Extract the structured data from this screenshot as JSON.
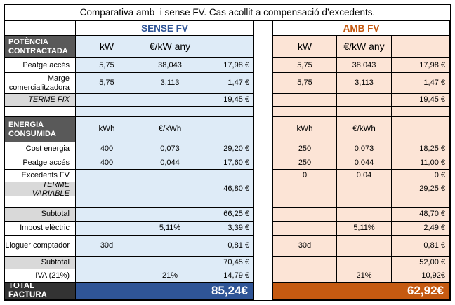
{
  "title": "Comparativa amb  i sense FV. Cas acollit a compensació d’excedents.",
  "section_headers": {
    "sense": "SENSE FV",
    "amb": "AMB FV"
  },
  "colors": {
    "sense_accent": "#2F5597",
    "amb_accent": "#C55A11",
    "sense_fill": "#DEEBF7",
    "amb_fill": "#FCE4D6",
    "section_header_fill": "#595959",
    "summary_fill": "#D9D9D9",
    "total_label_fill": "#333333"
  },
  "rows": [
    {
      "type": "section",
      "label": "POTÈNCIA CONTRACTADA",
      "sense": [
        "kW",
        "€/kW any",
        ""
      ],
      "amb": [
        "kW",
        "€/kW any",
        ""
      ]
    },
    {
      "type": "data",
      "label": "Peatge accés",
      "sense": [
        "5,75",
        "38,043",
        "17,98 €"
      ],
      "amb": [
        "5,75",
        "38,043",
        "17,98 €"
      ]
    },
    {
      "type": "data",
      "label": "Marge comercialitzadora",
      "sense": [
        "5,75",
        "3,113",
        "1,47 €"
      ],
      "amb": [
        "5,75",
        "3,113",
        "1,47 €"
      ]
    },
    {
      "type": "summary_italic",
      "label": "TERME FIX",
      "sense": [
        "",
        "",
        "19,45 €"
      ],
      "amb": [
        "",
        "",
        "19,45 €"
      ]
    },
    {
      "type": "blank",
      "label": "",
      "sense": [
        "",
        "",
        ""
      ],
      "amb": [
        "",
        "",
        ""
      ]
    },
    {
      "type": "section",
      "label": "ENERGIA CONSUMIDA",
      "sense": [
        "kWh",
        "€/kWh",
        ""
      ],
      "amb": [
        "kWh",
        "€/kWh",
        ""
      ]
    },
    {
      "type": "data",
      "label": "Cost energia",
      "sense": [
        "400",
        "0,073",
        "29,20 €"
      ],
      "amb": [
        "250",
        "0,073",
        "18,25 €"
      ]
    },
    {
      "type": "data",
      "label": "Peatge accés",
      "sense": [
        "400",
        "0,044",
        "17,60 €"
      ],
      "amb": [
        "250",
        "0,044",
        "11,00 €"
      ]
    },
    {
      "type": "data",
      "label": "Excedents FV",
      "sense": [
        "",
        "",
        ""
      ],
      "amb": [
        "0",
        "0,04",
        "0 €"
      ]
    },
    {
      "type": "summary_italic",
      "label": "TERME VARIABLE",
      "sense": [
        "",
        "",
        "46,80 €"
      ],
      "amb": [
        "",
        "",
        "29,25 €"
      ]
    },
    {
      "type": "blank",
      "label": "",
      "sense": [
        "",
        "",
        ""
      ],
      "amb": [
        "",
        "",
        ""
      ]
    },
    {
      "type": "summary",
      "label": "Subtotal",
      "sense": [
        "",
        "",
        "66,25 €"
      ],
      "amb": [
        "",
        "",
        "48,70 €"
      ]
    },
    {
      "type": "data",
      "label": "Impost elèctric",
      "sense": [
        "",
        "5,11%",
        "3,39 €"
      ],
      "amb": [
        "",
        "5,11%",
        "2,49 €"
      ]
    },
    {
      "type": "data",
      "label": "Lloguer comptador",
      "sense": [
        "30d",
        "",
        "0,81 €"
      ],
      "amb": [
        "30d",
        "",
        "0,81 €"
      ]
    },
    {
      "type": "summary",
      "label": "Subtotal",
      "sense": [
        "",
        "",
        "70,45 €"
      ],
      "amb": [
        "",
        "",
        "52,00 €"
      ]
    },
    {
      "type": "data",
      "label": "IVA (21%)",
      "sense": [
        "",
        "21%",
        "14,79 €"
      ],
      "amb": [
        "",
        "21%",
        "10,92€"
      ]
    }
  ],
  "totals": {
    "label": "TOTAL FACTURA",
    "sense": "85,24€",
    "amb": "62,92€"
  }
}
